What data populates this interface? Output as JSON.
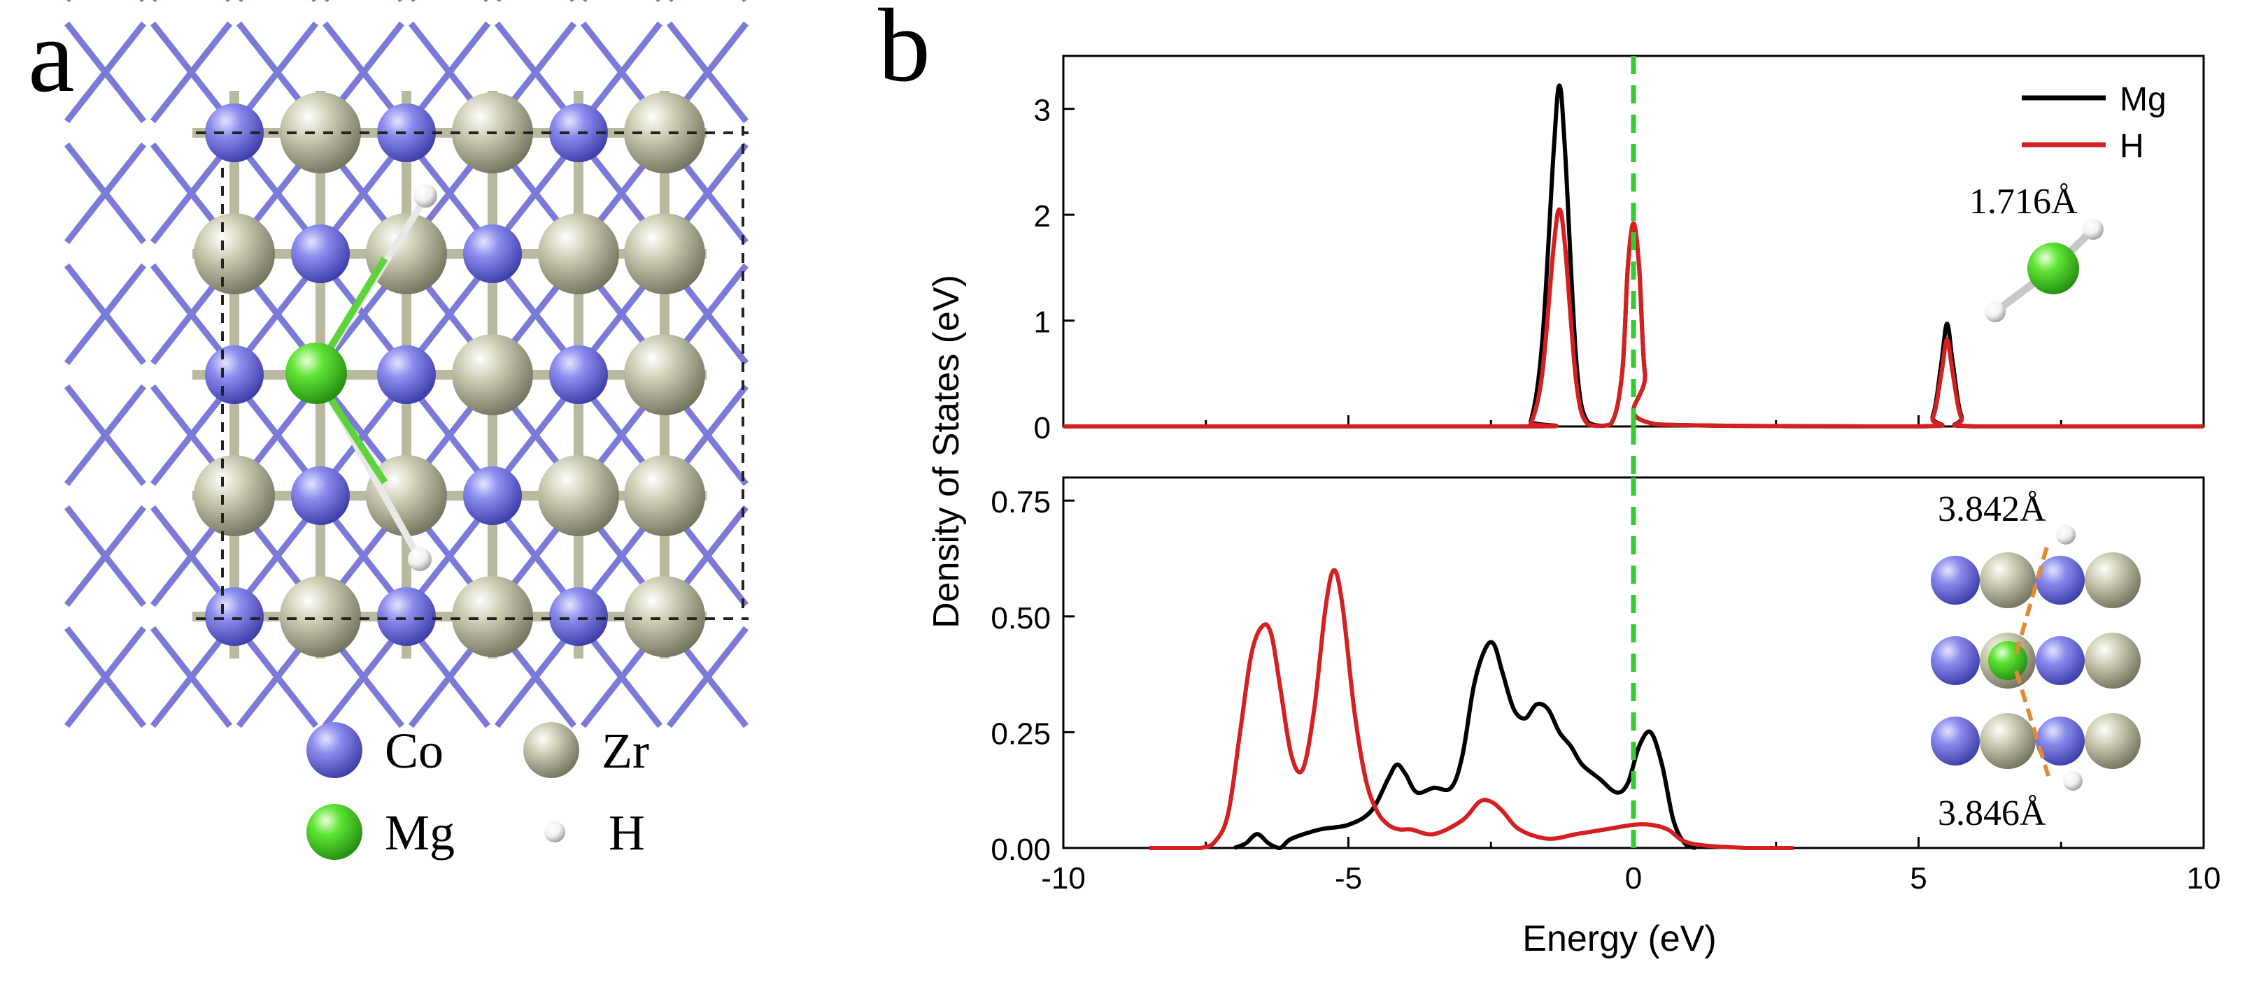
{
  "panel_labels": {
    "a": "a",
    "b": "b"
  },
  "structure": {
    "legend": [
      {
        "label": "Co",
        "color": "#6f6fd9"
      },
      {
        "label": "Zr",
        "color": "#c3c3a8"
      },
      {
        "label": "Mg",
        "color": "#4fd62a"
      },
      {
        "label": "H",
        "color": "#f2f2f2"
      }
    ]
  },
  "chart_data": [
    {
      "type": "line",
      "panel": "top",
      "xlim": [
        -10,
        10
      ],
      "ylim": [
        0,
        3.5
      ],
      "yticks": [
        "0",
        "1",
        "2",
        "3"
      ],
      "xticks": [],
      "fermi_line_x": 0,
      "fermi_line_color": "#33cc33",
      "legend": {
        "placement": "top-right",
        "entries": [
          "Mg",
          "H"
        ]
      },
      "annotation": "1.716Å",
      "series": [
        {
          "name": "Mg",
          "color": "#000000",
          "x": [
            -10,
            -2.0,
            -1.8,
            -1.6,
            -1.4,
            -1.3,
            -1.2,
            -1.0,
            -0.8,
            -0.4,
            -0.2,
            -0.1,
            0.0,
            0.1,
            0.2,
            0.4,
            5.0,
            5.25,
            5.4,
            5.5,
            5.6,
            5.75,
            6.0,
            10
          ],
          "y": [
            0,
            0,
            0.05,
            0.8,
            2.6,
            3.22,
            2.6,
            0.6,
            0.04,
            0.02,
            0.5,
            1.5,
            1.9,
            1.5,
            0.5,
            0.02,
            0,
            0.1,
            0.6,
            0.97,
            0.6,
            0.1,
            0,
            0
          ]
        },
        {
          "name": "H",
          "color": "#d42020",
          "x": [
            -10,
            -2.0,
            -1.8,
            -1.6,
            -1.4,
            -1.3,
            -1.2,
            -1.0,
            -0.8,
            -0.4,
            -0.2,
            -0.1,
            0.0,
            0.1,
            0.2,
            0.4,
            5.0,
            5.25,
            5.4,
            5.5,
            5.6,
            5.75,
            6.0,
            10
          ],
          "y": [
            0,
            0,
            0.03,
            0.5,
            1.7,
            2.05,
            1.7,
            0.4,
            0.02,
            0.02,
            0.5,
            1.5,
            1.92,
            1.5,
            0.5,
            0.02,
            0,
            0.08,
            0.5,
            0.82,
            0.5,
            0.08,
            0,
            0
          ]
        }
      ]
    },
    {
      "type": "line",
      "panel": "bottom",
      "xlim": [
        -10,
        10
      ],
      "ylim": [
        0,
        0.8
      ],
      "xticks": [
        "-10",
        "-5",
        "0",
        "5",
        "10"
      ],
      "yticks": [
        "0.00",
        "0.25",
        "0.50",
        "0.75"
      ],
      "xlabel": "Energy (eV)",
      "shared_ylabel": "Density of States (eV)",
      "fermi_line_x": 0,
      "annotations": [
        "3.842Å",
        "3.846Å"
      ],
      "series": [
        {
          "name": "Mg",
          "color": "#000000",
          "x": [
            -7.0,
            -6.8,
            -6.6,
            -6.4,
            -6.2,
            -6.0,
            -5.5,
            -5.0,
            -4.6,
            -4.3,
            -4.15,
            -4.0,
            -3.8,
            -3.5,
            -3.2,
            -3.0,
            -2.8,
            -2.6,
            -2.45,
            -2.3,
            -2.1,
            -1.9,
            -1.7,
            -1.5,
            -1.3,
            -1.1,
            -0.9,
            -0.6,
            -0.3,
            -0.1,
            0.1,
            0.3,
            0.5,
            0.7,
            0.9,
            1.1
          ],
          "y": [
            0.0,
            0.01,
            0.03,
            0.01,
            0.0,
            0.02,
            0.04,
            0.05,
            0.08,
            0.15,
            0.18,
            0.16,
            0.12,
            0.13,
            0.13,
            0.2,
            0.35,
            0.43,
            0.44,
            0.38,
            0.3,
            0.28,
            0.31,
            0.3,
            0.25,
            0.22,
            0.18,
            0.15,
            0.12,
            0.14,
            0.22,
            0.25,
            0.18,
            0.06,
            0.01,
            0.0
          ]
        },
        {
          "name": "H",
          "color": "#d42020",
          "x": [
            -8.5,
            -7.6,
            -7.3,
            -7.1,
            -6.9,
            -6.7,
            -6.5,
            -6.35,
            -6.2,
            -6.0,
            -5.8,
            -5.6,
            -5.4,
            -5.25,
            -5.1,
            -4.9,
            -4.7,
            -4.5,
            -4.3,
            -4.1,
            -3.9,
            -3.5,
            -3.0,
            -2.7,
            -2.5,
            -2.3,
            -2.0,
            -1.5,
            -1.0,
            -0.5,
            0.0,
            0.3,
            0.6,
            1.0,
            2.0,
            2.8
          ],
          "y": [
            0.0,
            0.0,
            0.02,
            0.08,
            0.25,
            0.42,
            0.48,
            0.46,
            0.35,
            0.2,
            0.17,
            0.3,
            0.52,
            0.6,
            0.52,
            0.3,
            0.15,
            0.08,
            0.05,
            0.04,
            0.04,
            0.03,
            0.06,
            0.1,
            0.1,
            0.08,
            0.04,
            0.02,
            0.03,
            0.04,
            0.05,
            0.05,
            0.04,
            0.01,
            0.0,
            0.0
          ]
        }
      ]
    }
  ]
}
